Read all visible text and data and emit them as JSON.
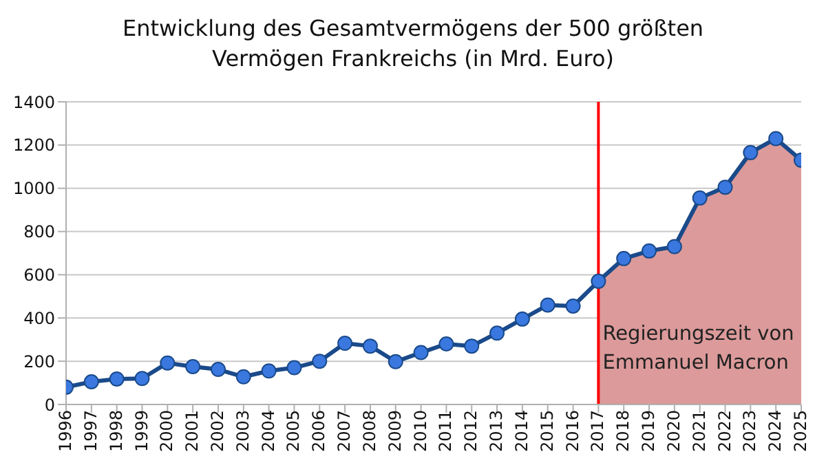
{
  "chart_data": {
    "type": "line",
    "title": "Entwicklung des Gesamtvermögens der 500 größten Vermögen Frankreichs (in Mrd. Euro)",
    "categories": [
      "1996",
      "1997",
      "1998",
      "1999",
      "2000",
      "2001",
      "2002",
      "2003",
      "2004",
      "2005",
      "2006",
      "2007",
      "2008",
      "2009",
      "2010",
      "2011",
      "2012",
      "2013",
      "2014",
      "2015",
      "2016",
      "2017",
      "2018",
      "2019",
      "2020",
      "2021",
      "2022",
      "2023",
      "2024",
      "2025"
    ],
    "series": [
      {
        "type": "area",
        "color": "#dc9a9a",
        "values": [
          null,
          null,
          null,
          null,
          null,
          null,
          null,
          null,
          null,
          null,
          null,
          null,
          null,
          null,
          null,
          null,
          null,
          null,
          null,
          null,
          null,
          570,
          675,
          710,
          730,
          955,
          1005,
          1165,
          1230,
          1130
        ]
      },
      {
        "color": "#1a4a8a",
        "marker": "circle",
        "values": [
          80,
          105,
          118,
          120,
          192,
          175,
          162,
          128,
          155,
          170,
          200,
          283,
          270,
          198,
          240,
          280,
          270,
          330,
          395,
          460,
          455,
          570,
          675,
          710,
          730,
          955,
          1005,
          1165,
          1230,
          1130
        ]
      }
    ],
    "ylim": [
      0,
      1400
    ],
    "yticks": [
      0,
      200,
      400,
      600,
      800,
      1000,
      1200,
      1400
    ],
    "grid": "y",
    "legend": false,
    "annotations": [
      {
        "text": "Regierungszeit von Emmanuel Macron",
        "x": "2017",
        "y": 300
      }
    ],
    "ref_lines": [
      {
        "axis": "x",
        "value": "2017",
        "color": "#ff0000"
      }
    ]
  }
}
